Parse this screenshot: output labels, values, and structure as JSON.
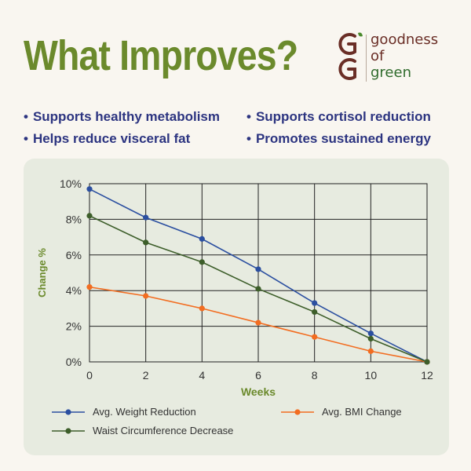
{
  "header": {
    "title": "What Improves?"
  },
  "brand": {
    "lines": [
      "goodness",
      "of",
      "green"
    ]
  },
  "bullets": [
    "Supports healthy metabolism",
    "Supports cortisol reduction",
    "Helps reduce visceral fat",
    "Promotes sustained energy"
  ],
  "colors": {
    "title": "#6b8a2c",
    "bullets": "#2c3480",
    "panel": "#e7ebe0"
  },
  "chart_data": {
    "type": "line",
    "title": "",
    "xlabel": "Weeks",
    "ylabel": "Change %",
    "x": [
      0,
      2,
      4,
      6,
      8,
      10,
      12
    ],
    "xlim": [
      0,
      12
    ],
    "ylim": [
      0,
      10
    ],
    "x_ticks": [
      "0",
      "2",
      "4",
      "6",
      "8",
      "10",
      "12"
    ],
    "y_ticks": [
      "0%",
      "2%",
      "4%",
      "6%",
      "8%",
      "10%"
    ],
    "grid": true,
    "legend_position": "bottom",
    "series": [
      {
        "name": "Avg. Weight Reduction",
        "color": "#2b4fa0",
        "values": [
          9.7,
          8.1,
          6.9,
          5.2,
          3.3,
          1.6,
          0
        ]
      },
      {
        "name": "Avg. BMI Change",
        "color": "#f26d21",
        "values": [
          4.2,
          3.7,
          3.0,
          2.2,
          1.4,
          0.6,
          0
        ]
      },
      {
        "name": "Waist Circumference Decrease",
        "color": "#3d5e2a",
        "values": [
          8.2,
          6.7,
          5.6,
          4.1,
          2.8,
          1.3,
          0
        ]
      }
    ]
  }
}
